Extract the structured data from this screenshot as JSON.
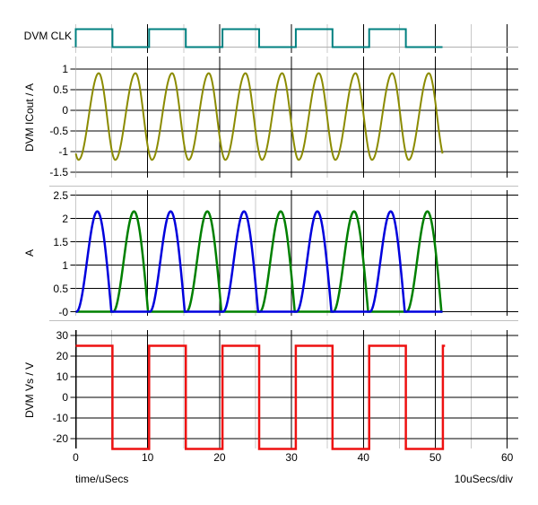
{
  "plots": [
    {
      "id": "clk",
      "label": "DVM CLK"
    },
    {
      "id": "icout",
      "label": "DVM ICout / A",
      "ytick_labels": [
        "1",
        "0.5",
        "0",
        "-0.5",
        "-1",
        "-1.5"
      ],
      "ytick_values": [
        1,
        0.5,
        0,
        -0.5,
        -1,
        -1.5
      ]
    },
    {
      "id": "a",
      "label": "A",
      "ytick_labels": [
        "2.5",
        "2",
        "1.5",
        "1",
        "0.5",
        "-0"
      ],
      "ytick_values": [
        2.5,
        2,
        1.5,
        1,
        0.5,
        0
      ]
    },
    {
      "id": "vs",
      "label": "DVM Vs / V",
      "ytick_labels": [
        "30",
        "20",
        "10",
        "0",
        "-10",
        "-20"
      ],
      "ytick_values": [
        30,
        20,
        10,
        0,
        -10,
        -20
      ]
    }
  ],
  "xaxis": {
    "tick_labels": [
      "0",
      "10",
      "20",
      "30",
      "40",
      "50",
      "60"
    ],
    "tick_values": [
      0,
      10,
      20,
      30,
      40,
      50,
      60
    ],
    "minor_values": [
      5,
      15,
      25,
      35,
      45,
      55
    ],
    "max": 60
  },
  "footer": {
    "xlabel": "time/uSecs",
    "per_div": "10uSecs/div"
  },
  "colors": {
    "clk": "#008080",
    "icout": "#8b8b00",
    "a_blue": "#0000dd",
    "a_green": "#008000",
    "vs": "#ee1111",
    "grid_major": "#000000",
    "grid_minor": "#c8c8c8",
    "separator": "#c0c0c0",
    "baseline": "#b0b0b0",
    "background": "#ffffff",
    "text": "#000000"
  },
  "chart_data": [
    {
      "plot": "DVM CLK",
      "type": "line",
      "x_unit": "uSecs",
      "series": [
        {
          "name": "DVM CLK",
          "waveform": "square",
          "high": 1,
          "low": 0,
          "high_intervals": [
            [
              0,
              5.1
            ],
            [
              10.2,
              15.3
            ],
            [
              20.4,
              25.5
            ],
            [
              30.6,
              35.7
            ],
            [
              40.8,
              45.9
            ]
          ],
          "t_end": 51,
          "lead_edge": true,
          "color_key": "clk",
          "stroke_width": 2
        }
      ]
    },
    {
      "plot": "DVM ICout / A",
      "type": "line",
      "ylabel": "DVM ICout / A",
      "ylim": [
        -1.65,
        1.3
      ],
      "x_unit": "uSecs",
      "series": [
        {
          "name": "DVM ICout",
          "waveform": "skewed_sine",
          "min": -1.2,
          "max": 0.9,
          "period": 5.1,
          "t_min": 0.4,
          "t_peak": 3.2,
          "t_end": 51,
          "color_key": "icout",
          "stroke_width": 2
        }
      ]
    },
    {
      "plot": "A",
      "type": "line",
      "ylabel": "A",
      "ylim": [
        -0.1,
        2.6
      ],
      "x_unit": "uSecs",
      "series": [
        {
          "name": "green phase current",
          "waveform": "half_sine_pulses",
          "peak": 2.15,
          "period": 10.2,
          "first_pulse": 5.2,
          "peak_offset": 2.9,
          "pulse_width": 4.85,
          "count": 5,
          "t_end": 51,
          "color_key": "a_green",
          "stroke_width": 2.5
        },
        {
          "name": "blue phase current",
          "waveform": "half_sine_pulses",
          "peak": 2.15,
          "period": 10.2,
          "first_pulse": 0.1,
          "peak_offset": 2.9,
          "pulse_width": 4.85,
          "count": 5,
          "t_end": 51,
          "color_key": "a_blue",
          "stroke_width": 2.5
        }
      ]
    },
    {
      "plot": "DVM Vs / V",
      "type": "line",
      "ylabel": "DVM Vs / V",
      "ylim": [
        -25.7,
        32.6
      ],
      "x_unit": "uSecs",
      "series": [
        {
          "name": "DVM Vs",
          "waveform": "square",
          "high": 25,
          "low": -25,
          "high_intervals": [
            [
              0,
              5.1
            ],
            [
              10.2,
              15.3
            ],
            [
              20.4,
              25.5
            ],
            [
              30.6,
              35.7
            ],
            [
              40.8,
              45.9
            ],
            [
              51.05,
              51.35
            ]
          ],
          "t_end": 51.35,
          "lead_edge": false,
          "color_key": "vs",
          "stroke_width": 2.5
        }
      ]
    }
  ]
}
